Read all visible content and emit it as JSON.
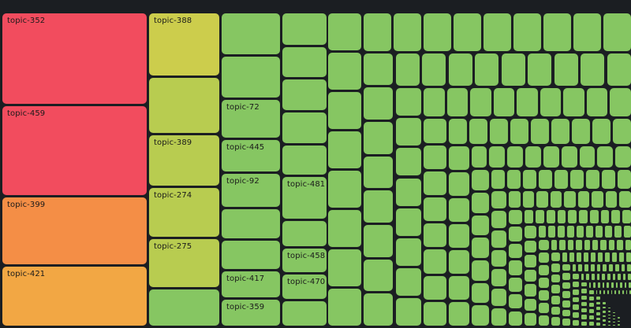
{
  "chart_data": {
    "type": "treemap",
    "title": "",
    "colors": {
      "red": "#f24c5e",
      "orange": "#f48e46",
      "orange_yellow": "#f2a744",
      "yellow": "#cccd4c",
      "yellow_green": "#b8cc50",
      "green": "#86c662",
      "background": "#1b1e22"
    },
    "nodes": [
      {
        "name": "topic-352",
        "value": 8.3
      },
      {
        "name": "topic-459",
        "value": 8.2
      },
      {
        "name": "topic-399",
        "value": 6.2
      },
      {
        "name": "topic-421",
        "value": 5.5
      },
      {
        "name": "topic-388",
        "value": 2.6
      },
      {
        "name": "topic-389",
        "value": 2.1
      },
      {
        "name": "topic-274",
        "value": 2.0
      },
      {
        "name": "topic-275",
        "value": 2.0
      },
      {
        "name": "topic-72",
        "value": 1.4
      },
      {
        "name": "topic-445",
        "value": 1.3
      },
      {
        "name": "topic-92",
        "value": 1.3
      },
      {
        "name": "topic-417",
        "value": 1.1
      },
      {
        "name": "topic-359",
        "value": 1.0
      },
      {
        "name": "topic-481",
        "value": 1.1
      },
      {
        "name": "topic-458",
        "value": 0.8
      },
      {
        "name": "topic-470",
        "value": 0.8
      }
    ],
    "unlabeled_small_topics": 650
  }
}
